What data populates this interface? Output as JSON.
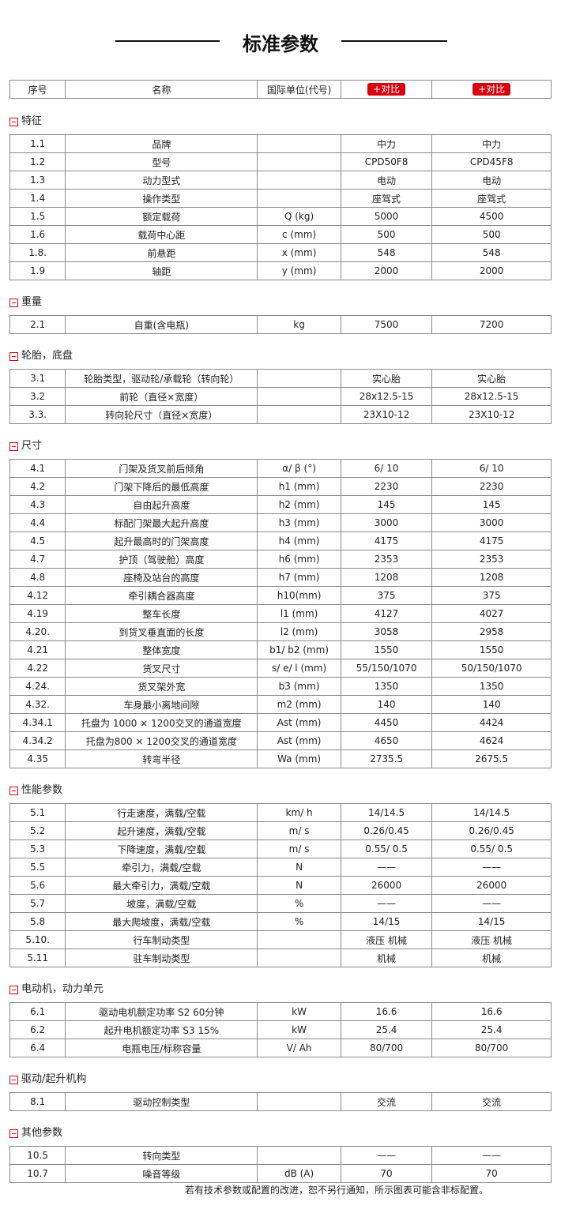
{
  "page_title": "标准参数",
  "header": {
    "no": "序号",
    "name": "名称",
    "unit": "国际单位(代号)",
    "compare_1": "+对比",
    "compare_2": "+对比"
  },
  "accent_color": "#d9000f",
  "sections": [
    {
      "title": "特征",
      "rows": [
        [
          "1.1",
          "品牌",
          "",
          "中力",
          "中力"
        ],
        [
          "1.2",
          "型号",
          "",
          "CPD50F8",
          "CPD45F8"
        ],
        [
          "1.3",
          "动力型式",
          "",
          "电动",
          "电动"
        ],
        [
          "1.4",
          "操作类型",
          "",
          "座驾式",
          "座驾式"
        ],
        [
          "1.5",
          "额定载荷",
          "Q (kg)",
          "5000",
          "4500"
        ],
        [
          "1.6",
          "载荷中心距",
          "c (mm)",
          "500",
          "500"
        ],
        [
          "1.8.",
          "前悬距",
          "x (mm)",
          "548",
          "548"
        ],
        [
          "1.9",
          "轴距",
          "y (mm)",
          "2000",
          "2000"
        ]
      ]
    },
    {
      "title": "重量",
      "rows": [
        [
          "2.1",
          "自重(含电瓶)",
          "kg",
          "7500",
          "7200"
        ]
      ]
    },
    {
      "title": "轮胎，底盘",
      "rows": [
        [
          "3.1",
          "轮胎类型，驱动轮/承载轮（转向轮）",
          "",
          "实心胎",
          "实心胎"
        ],
        [
          "3.2",
          "前轮（直径×宽度）",
          "",
          "28x12.5-15",
          "28x12.5-15"
        ],
        [
          "3.3.",
          "转向轮尺寸（直径×宽度）",
          "",
          "23X10-12",
          "23X10-12"
        ]
      ]
    },
    {
      "title": "尺寸",
      "rows": [
        [
          "4.1",
          "门架及货叉前后倾角",
          "α/ β (°)",
          "6/ 10",
          "6/ 10"
        ],
        [
          "4.2",
          "门架下降后的最低高度",
          "h1 (mm)",
          "2230",
          "2230"
        ],
        [
          "4.3",
          "自由起升高度",
          "h2 (mm)",
          "145",
          "145"
        ],
        [
          "4.4",
          "标配门架最大起升高度",
          "h3 (mm)",
          "3000",
          "3000"
        ],
        [
          "4.5",
          "起升最高时的门架高度",
          "h4 (mm)",
          "4175",
          "4175"
        ],
        [
          "4.7",
          "护顶（驾驶舱）高度",
          "h6 (mm)",
          "2353",
          "2353"
        ],
        [
          "4.8",
          "座椅及站台的高度",
          "h7 (mm)",
          "1208",
          "1208"
        ],
        [
          "4.12",
          "牵引耦合器高度",
          "h10(mm)",
          "375",
          "375"
        ],
        [
          "4.19",
          "整车长度",
          "l1 (mm)",
          "4127",
          "4027"
        ],
        [
          "4.20.",
          "到货叉垂直面的长度",
          "l2 (mm)",
          "3058",
          "2958"
        ],
        [
          "4.21",
          "整体宽度",
          "b1/ b2 (mm)",
          "1550",
          "1550"
        ],
        [
          "4.22",
          "货叉尺寸",
          "s/ e/ l (mm)",
          "55/150/1070",
          "50/150/1070"
        ],
        [
          "4.24.",
          "货叉架外宽",
          "b3 (mm)",
          "1350",
          "1350"
        ],
        [
          "4.32.",
          "车身最小离地间隙",
          "m2 (mm)",
          "140",
          "140"
        ],
        [
          "4.34.1",
          "托盘为 1000 × 1200交叉的通道宽度",
          "Ast (mm)",
          "4450",
          "4424"
        ],
        [
          "4.34.2",
          "托盘为800 × 1200交叉的通道宽度",
          "Ast (mm)",
          "4650",
          "4624"
        ],
        [
          "4.35",
          "转弯半径",
          "Wa (mm)",
          "2735.5",
          "2675.5"
        ]
      ]
    },
    {
      "title": "性能参数",
      "rows": [
        [
          "5.1",
          "行走速度，满载/空载",
          "km/ h",
          "14/14.5",
          "14/14.5"
        ],
        [
          "5.2",
          "起升速度，满载/空载",
          "m/ s",
          "0.26/0.45",
          "0.26/0.45"
        ],
        [
          "5.3",
          "下降速度，满载/空载",
          "m/ s",
          "0.55/ 0.5",
          "0.55/ 0.5"
        ],
        [
          "5.5",
          "牵引力，满载/空载",
          "N",
          "——",
          "——"
        ],
        [
          "5.6",
          "最大牵引力，满载/空载",
          "N",
          "26000",
          "26000"
        ],
        [
          "5.7",
          "坡度，满载/空载",
          "%",
          "——",
          "——"
        ],
        [
          "5.8",
          "最大爬坡度，满载/空载",
          "%",
          "14/15",
          "14/15"
        ],
        [
          "5.10.",
          "行车制动类型",
          "",
          "液压 机械",
          "液压 机械"
        ],
        [
          "5.11",
          "驻车制动类型",
          "",
          "机械",
          "机械"
        ]
      ]
    },
    {
      "title": "电动机，动力单元",
      "rows": [
        [
          "6.1",
          "驱动电机额定功率 S2 60分钟",
          "kW",
          "16.6",
          "16.6"
        ],
        [
          "6.2",
          "起升电机额定功率 S3 15%",
          "kW",
          "25.4",
          "25.4"
        ],
        [
          "6.4",
          "电瓶电压/标称容量",
          "V/ Ah",
          "80/700",
          "80/700"
        ]
      ]
    },
    {
      "title": "驱动/起升机构",
      "rows": [
        [
          "8.1",
          "驱动控制类型",
          "",
          "交流",
          "交流"
        ]
      ]
    },
    {
      "title": "其他参数",
      "rows": [
        [
          "10.5",
          "转向类型",
          "",
          "——",
          "——"
        ],
        [
          "10.7",
          "噪音等级",
          "dB (A)",
          "70",
          "70"
        ]
      ]
    }
  ],
  "footer_note": "若有技术参数或配置的改进，恕不另行通知，所示图表可能含非标配置。"
}
